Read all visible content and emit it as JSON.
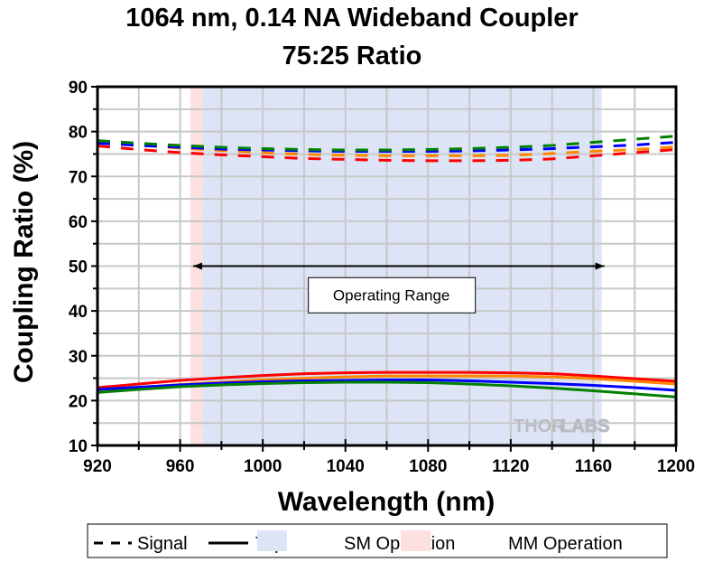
{
  "chart_data": {
    "type": "line",
    "title": "1064 nm, 0.14 NA Wideband Coupler",
    "subtitle": "75:25 Ratio",
    "xlabel": "Wavelength (nm)",
    "ylabel": "Coupling Ratio (%)",
    "xlim": [
      920,
      1200
    ],
    "ylim": [
      10,
      90
    ],
    "xticks": [
      920,
      960,
      1000,
      1040,
      1080,
      1120,
      1160,
      1200
    ],
    "yticks": [
      10,
      20,
      30,
      40,
      50,
      60,
      70,
      80,
      90
    ],
    "grid": true,
    "x": [
      920,
      940,
      960,
      980,
      1000,
      1020,
      1040,
      1060,
      1080,
      1100,
      1120,
      1140,
      1160,
      1180,
      1200
    ],
    "series": [
      {
        "name": "Signal (red)",
        "style": "dashed",
        "color": "#ff0000",
        "values": [
          76.8,
          76.0,
          75.3,
          74.8,
          74.4,
          74.0,
          73.8,
          73.6,
          73.5,
          73.5,
          73.6,
          73.9,
          74.6,
          75.3,
          76.0
        ]
      },
      {
        "name": "Signal (orange)",
        "style": "dashed",
        "color": "#ff8800",
        "values": [
          77.6,
          77.0,
          76.3,
          75.8,
          75.3,
          74.9,
          74.7,
          74.6,
          74.6,
          74.6,
          74.7,
          75.1,
          75.6,
          76.0,
          76.6
        ]
      },
      {
        "name": "Signal (blue)",
        "style": "dashed",
        "color": "#0000ff",
        "values": [
          77.4,
          76.9,
          76.5,
          76.1,
          75.9,
          75.7,
          75.6,
          75.6,
          75.6,
          75.7,
          75.9,
          76.2,
          76.6,
          77.0,
          77.6
        ]
      },
      {
        "name": "Signal (green)",
        "style": "dashed",
        "color": "#008000",
        "values": [
          78.0,
          77.4,
          76.9,
          76.5,
          76.2,
          76.0,
          75.9,
          75.9,
          76.0,
          76.2,
          76.5,
          76.9,
          77.6,
          78.3,
          79.0
        ]
      },
      {
        "name": "Tap (red)",
        "style": "solid",
        "color": "#ff0000",
        "values": [
          22.9,
          23.7,
          24.5,
          25.1,
          25.6,
          26.0,
          26.2,
          26.3,
          26.3,
          26.3,
          26.2,
          26.0,
          25.5,
          24.9,
          24.3
        ]
      },
      {
        "name": "Tap (orange)",
        "style": "solid",
        "color": "#ff8800",
        "values": [
          22.3,
          22.9,
          23.6,
          24.1,
          24.6,
          25.0,
          25.3,
          25.5,
          25.5,
          25.5,
          25.5,
          25.3,
          24.9,
          24.3,
          23.7
        ]
      },
      {
        "name": "Tap (blue)",
        "style": "solid",
        "color": "#0000ff",
        "values": [
          22.5,
          23.0,
          23.5,
          23.9,
          24.2,
          24.4,
          24.5,
          24.6,
          24.6,
          24.4,
          24.1,
          23.8,
          23.4,
          22.9,
          22.3
        ]
      },
      {
        "name": "Tap (green)",
        "style": "solid",
        "color": "#008000",
        "values": [
          21.8,
          22.5,
          23.1,
          23.5,
          23.8,
          24.0,
          24.1,
          24.1,
          24.0,
          23.7,
          23.3,
          22.8,
          22.2,
          21.5,
          20.8
        ]
      }
    ],
    "bands": [
      {
        "name": "MM Operation",
        "from": 965,
        "to": 971,
        "color": "#fde0e0"
      },
      {
        "name": "SM Operation",
        "from": 971,
        "to": 1164,
        "color": "#dce4f5"
      }
    ],
    "annotations": [
      {
        "type": "double-arrow",
        "from": 965,
        "to": 1164,
        "y": 50
      },
      {
        "type": "text-box",
        "text": "Operating Range",
        "x": 1064,
        "y": 44
      }
    ],
    "watermark": {
      "text_dark": "THOR",
      "text_light": "LABS"
    },
    "legend": {
      "position": "bottom",
      "entries": [
        {
          "label": "Signal",
          "kind": "dashed-line"
        },
        {
          "label": "Tap",
          "kind": "solid-line"
        },
        {
          "label": "SM Operation",
          "kind": "swatch",
          "color": "#dce4f5"
        },
        {
          "label": "MM Operation",
          "kind": "swatch",
          "color": "#fde0e0"
        }
      ]
    }
  }
}
